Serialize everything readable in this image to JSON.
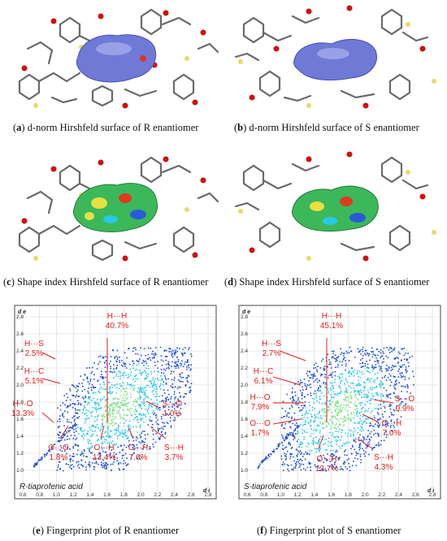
{
  "panels": {
    "a": {
      "letter": "a",
      "caption": " d-norm Hirshfeld surface of R enantiomer"
    },
    "b": {
      "letter": "b",
      "caption": " d-norm Hirshfeld surface of S enantiomer"
    },
    "c": {
      "letter": "c",
      "caption": " Shape index Hirshfeld surface of R enantiomer"
    },
    "d": {
      "letter": "d",
      "caption": " Shape index Hirshfeld surface of S enantiomer"
    },
    "e": {
      "letter": "e",
      "caption": " Fingerprint plot of R enantiomer"
    },
    "f": {
      "letter": "f",
      "caption": " Fingerprint plot of S enantiomer"
    }
  },
  "chart_data": [
    {
      "type": "scatter",
      "title": "R-tiaprofenic acid",
      "xlabel": "d i",
      "ylabel": "d e",
      "xlim": [
        0.6,
        2.8
      ],
      "ylim": [
        0.8,
        2.8
      ],
      "x_ticks": [
        "0.6",
        "0.8",
        "1.0",
        "1.2",
        "1.4",
        "1.6",
        "1.8",
        "2.0",
        "2.2",
        "2.4",
        "2.6",
        "2.8"
      ],
      "y_ticks": [
        "2.8",
        "2.6",
        "2.4",
        "2.2",
        "2.0",
        "1.8",
        "1.6",
        "1.4",
        "1.2",
        "1.0"
      ],
      "grid": true,
      "annotations": [
        {
          "label": "H···H",
          "value": "40.7%"
        },
        {
          "label": "H···S",
          "value": "2.5%"
        },
        {
          "label": "H···C",
          "value": "5.1%"
        },
        {
          "label": "H···O",
          "value": "13.3%"
        },
        {
          "label": "O···O",
          "value": "1.8%"
        },
        {
          "label": "O···H",
          "value": "13.4%"
        },
        {
          "label": "C···H",
          "value": "7.6%"
        },
        {
          "label": "S···H",
          "value": "3.7%"
        },
        {
          "label": "S···O",
          "value": "1.0%"
        }
      ]
    },
    {
      "type": "scatter",
      "title": "S-tiaprofenic acid",
      "xlabel": "d i",
      "ylabel": "d e",
      "xlim": [
        0.6,
        2.8
      ],
      "ylim": [
        0.8,
        2.8
      ],
      "x_ticks": [
        "0.6",
        "0.8",
        "1.0",
        "1.2",
        "1.4",
        "1.6",
        "1.8",
        "2.0",
        "2.2",
        "2.4",
        "2.6",
        "2.8"
      ],
      "y_ticks": [
        "2.8",
        "2.6",
        "2.4",
        "2.2",
        "2.0",
        "1.8",
        "1.6",
        "1.4",
        "1.2",
        "1.0"
      ],
      "grid": true,
      "annotations": [
        {
          "label": "H···H",
          "value": "45.1%"
        },
        {
          "label": "H···S",
          "value": "2.7%"
        },
        {
          "label": "H···C",
          "value": "6.1%"
        },
        {
          "label": "H···O",
          "value": "7.9%"
        },
        {
          "label": "O···O",
          "value": "1.7%"
        },
        {
          "label": "O···H",
          "value": "12.7%"
        },
        {
          "label": "C···H",
          "value": "7.0%"
        },
        {
          "label": "S···H",
          "value": "4.3%"
        },
        {
          "label": "S···O",
          "value": "0.9%"
        }
      ]
    }
  ],
  "colors": {
    "label_red": "#e0201b",
    "dnorm_blue": "#6f79d6",
    "fp_blue": "#1f4fd6",
    "fp_cyan": "#29c8e8",
    "fp_green": "#7fe08a",
    "bond_grey": "#6a6a6a",
    "oxygen_red": "#d01010",
    "sulfur_yellow": "#e6da6a"
  }
}
